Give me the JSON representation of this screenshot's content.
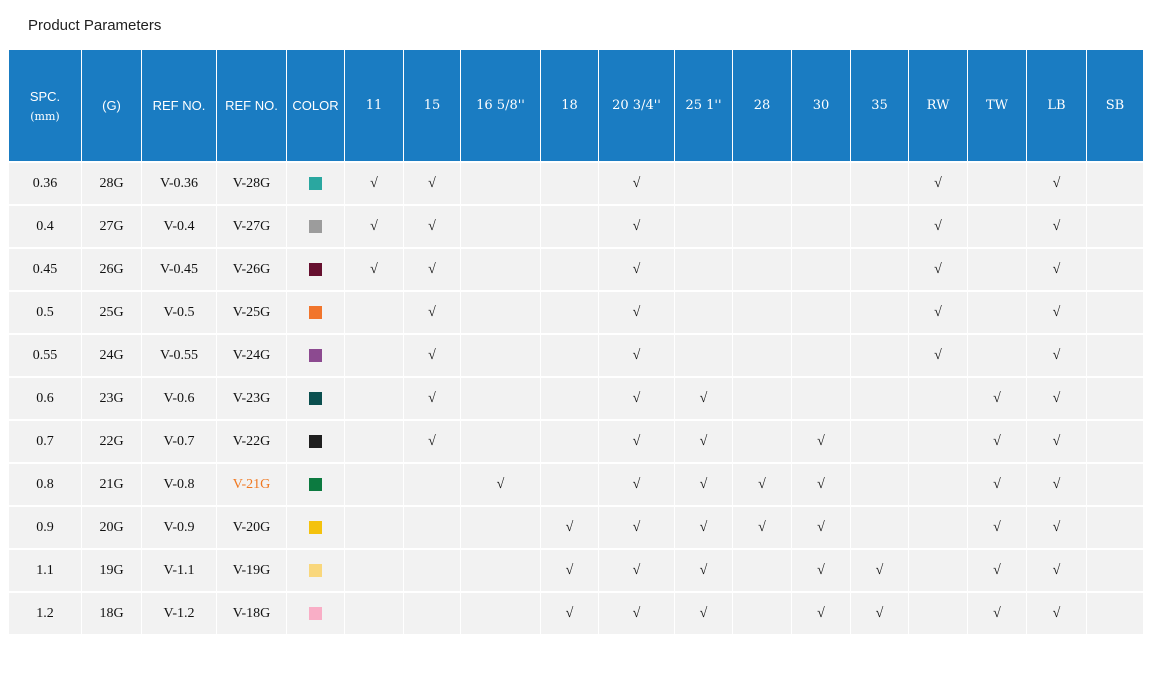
{
  "page": {
    "title": "Product Parameters"
  },
  "table": {
    "header_bg": "#1a7cc2",
    "check_symbol": "√",
    "highlight_ref_color": "#f07820",
    "fixed_columns": [
      {
        "label": "SPC.",
        "sublabel": "(mm)"
      },
      {
        "label": "(G)"
      },
      {
        "label": "REF NO."
      },
      {
        "label": "REF NO."
      },
      {
        "label": "COLOR"
      }
    ],
    "size_columns": [
      "11",
      "15",
      "16 5/8''",
      "18",
      "20 3/4''",
      "25 1''",
      "28",
      "30",
      "35",
      "RW",
      "TW",
      "LB",
      "SB"
    ],
    "rows": [
      {
        "spc": "0.36",
        "gauge": "28G",
        "ref_no": "V-0.36",
        "ref_no_2": "V-28G",
        "ref_no_2_highlight": false,
        "color": "#2aa7a0",
        "checks": [
          1,
          1,
          0,
          0,
          1,
          0,
          0,
          0,
          0,
          1,
          0,
          1,
          0
        ]
      },
      {
        "spc": "0.4",
        "gauge": "27G",
        "ref_no": "V-0.4",
        "ref_no_2": "V-27G",
        "ref_no_2_highlight": false,
        "color": "#9c9c9c",
        "checks": [
          1,
          1,
          0,
          0,
          1,
          0,
          0,
          0,
          0,
          1,
          0,
          1,
          0
        ]
      },
      {
        "spc": "0.45",
        "gauge": "26G",
        "ref_no": "V-0.45",
        "ref_no_2": "V-26G",
        "ref_no_2_highlight": false,
        "color": "#66102f",
        "checks": [
          1,
          1,
          0,
          0,
          1,
          0,
          0,
          0,
          0,
          1,
          0,
          1,
          0
        ]
      },
      {
        "spc": "0.5",
        "gauge": "25G",
        "ref_no": "V-0.5",
        "ref_no_2": "V-25G",
        "ref_no_2_highlight": false,
        "color": "#f1752c",
        "checks": [
          0,
          1,
          0,
          0,
          1,
          0,
          0,
          0,
          0,
          1,
          0,
          1,
          0
        ]
      },
      {
        "spc": "0.55",
        "gauge": "24G",
        "ref_no": "V-0.55",
        "ref_no_2": "V-24G",
        "ref_no_2_highlight": false,
        "color": "#8c4a90",
        "checks": [
          0,
          1,
          0,
          0,
          1,
          0,
          0,
          0,
          0,
          1,
          0,
          1,
          0
        ]
      },
      {
        "spc": "0.6",
        "gauge": "23G",
        "ref_no": "V-0.6",
        "ref_no_2": "V-23G",
        "ref_no_2_highlight": false,
        "color": "#0b4f4f",
        "checks": [
          0,
          1,
          0,
          0,
          1,
          1,
          0,
          0,
          0,
          0,
          1,
          1,
          0
        ]
      },
      {
        "spc": "0.7",
        "gauge": "22G",
        "ref_no": "V-0.7",
        "ref_no_2": "V-22G",
        "ref_no_2_highlight": false,
        "color": "#1f1f1f",
        "checks": [
          0,
          1,
          0,
          0,
          1,
          1,
          0,
          1,
          0,
          0,
          1,
          1,
          0
        ]
      },
      {
        "spc": "0.8",
        "gauge": "21G",
        "ref_no": "V-0.8",
        "ref_no_2": "V-21G",
        "ref_no_2_highlight": true,
        "color": "#0c7a40",
        "checks": [
          0,
          0,
          1,
          0,
          1,
          1,
          1,
          1,
          0,
          0,
          1,
          1,
          0
        ]
      },
      {
        "spc": "0.9",
        "gauge": "20G",
        "ref_no": "V-0.9",
        "ref_no_2": "V-20G",
        "ref_no_2_highlight": false,
        "color": "#f4c20d",
        "checks": [
          0,
          0,
          0,
          1,
          1,
          1,
          1,
          1,
          0,
          0,
          1,
          1,
          0
        ]
      },
      {
        "spc": "1.1",
        "gauge": "19G",
        "ref_no": "V-1.1",
        "ref_no_2": "V-19G",
        "ref_no_2_highlight": false,
        "color": "#f9d77c",
        "checks": [
          0,
          0,
          0,
          1,
          1,
          1,
          0,
          1,
          1,
          0,
          1,
          1,
          0
        ]
      },
      {
        "spc": "1.2",
        "gauge": "18G",
        "ref_no": "V-1.2",
        "ref_no_2": "V-18G",
        "ref_no_2_highlight": false,
        "color": "#f9aec6",
        "checks": [
          0,
          0,
          0,
          1,
          1,
          1,
          0,
          1,
          1,
          0,
          1,
          1,
          0
        ]
      }
    ]
  }
}
